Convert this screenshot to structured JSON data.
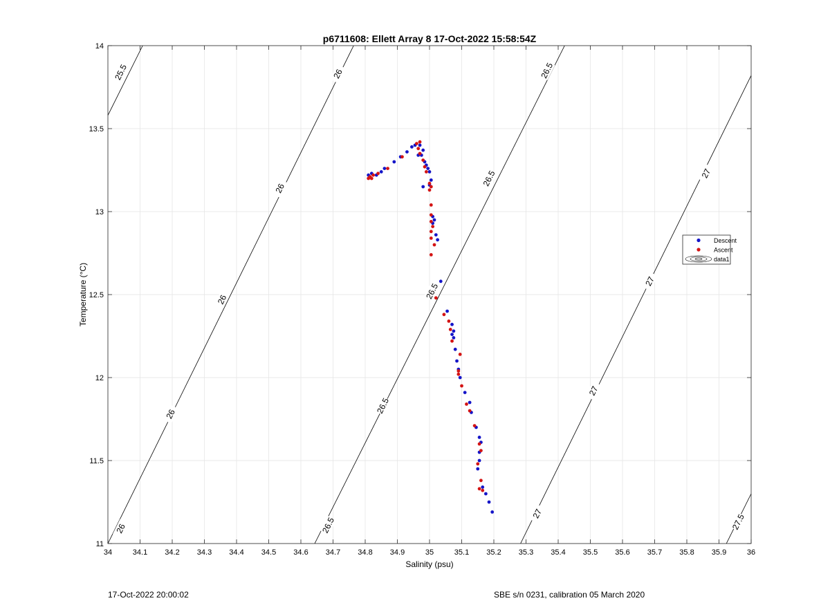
{
  "chart_data": {
    "type": "scatter",
    "title": "p6711608: Ellett Array 8 17-Oct-2022 15:58:54Z",
    "xlabel": "Salinity (psu)",
    "ylabel": "Temperature (°C)",
    "xlim": [
      34,
      36
    ],
    "ylim": [
      11,
      14
    ],
    "x_ticks": [
      34,
      34.1,
      34.2,
      34.3,
      34.4,
      34.5,
      34.6,
      34.7,
      34.8,
      34.9,
      35,
      35.1,
      35.2,
      35.3,
      35.4,
      35.5,
      35.6,
      35.7,
      35.8,
      35.9,
      36
    ],
    "x_tick_labels": [
      "34",
      "34.1",
      "34.2",
      "34.3",
      "34.4",
      "34.5",
      "34.6",
      "34.7",
      "34.8",
      "34.9",
      "35",
      "35.1",
      "35.2",
      "35.3",
      "35.4",
      "35.5",
      "35.6",
      "35.7",
      "35.8",
      "35.9",
      "36"
    ],
    "y_ticks": [
      11,
      11.5,
      12,
      12.5,
      13,
      13.5,
      14
    ],
    "y_tick_labels": [
      "11",
      "11.5",
      "12",
      "12.5",
      "13",
      "13.5",
      "14"
    ],
    "grid": true,
    "legend_position": "right",
    "legend": [
      "Descent",
      "Ascent",
      "data1"
    ],
    "colors": {
      "descent": "#1515c8",
      "ascent": "#d41414",
      "contour": "#000000",
      "grid": "#e3e3e3"
    },
    "contours": [
      {
        "level": "25.5",
        "points": [
          [
            34,
            13.58
          ],
          [
            34.108,
            14
          ]
        ],
        "labels": [
          {
            "s": 34.04,
            "t": 13.84
          }
        ]
      },
      {
        "level": "26",
        "points": [
          [
            34,
            11.0
          ],
          [
            34.764,
            14
          ]
        ],
        "labels": [
          {
            "s": 34.04,
            "t": 11.09
          },
          {
            "s": 34.195,
            "t": 11.78
          },
          {
            "s": 34.355,
            "t": 12.47
          },
          {
            "s": 34.535,
            "t": 13.14
          },
          {
            "s": 34.715,
            "t": 13.83
          }
        ]
      },
      {
        "level": "26.5",
        "points": [
          [
            34.643,
            11.0
          ],
          [
            35.42,
            14
          ]
        ],
        "labels": [
          {
            "s": 34.685,
            "t": 11.11
          },
          {
            "s": 34.855,
            "t": 11.83
          },
          {
            "s": 35.008,
            "t": 12.52
          },
          {
            "s": 35.185,
            "t": 13.2
          },
          {
            "s": 35.365,
            "t": 13.85
          }
        ]
      },
      {
        "level": "27",
        "points": [
          [
            35.283,
            11.0
          ],
          [
            36,
            13.82
          ]
        ],
        "labels": [
          {
            "s": 35.335,
            "t": 11.18
          },
          {
            "s": 35.51,
            "t": 11.92
          },
          {
            "s": 35.685,
            "t": 12.58
          },
          {
            "s": 35.86,
            "t": 13.23
          }
        ]
      },
      {
        "level": "27.5",
        "points": [
          [
            35.923,
            11.0
          ],
          [
            36,
            11.3
          ]
        ],
        "labels": [
          {
            "s": 35.96,
            "t": 11.13
          }
        ]
      }
    ],
    "series": [
      {
        "name": "Descent",
        "color": "#1515c8",
        "points": [
          [
            34.81,
            13.22
          ],
          [
            34.82,
            13.23
          ],
          [
            34.835,
            13.22
          ],
          [
            34.85,
            13.24
          ],
          [
            34.86,
            13.26
          ],
          [
            34.89,
            13.3
          ],
          [
            34.91,
            13.33
          ],
          [
            34.93,
            13.36
          ],
          [
            34.945,
            13.39
          ],
          [
            34.955,
            13.4
          ],
          [
            34.97,
            13.4
          ],
          [
            34.98,
            13.37
          ],
          [
            34.965,
            13.34
          ],
          [
            34.975,
            13.34
          ],
          [
            34.985,
            13.3
          ],
          [
            34.99,
            13.28
          ],
          [
            34.995,
            13.26
          ],
          [
            35.0,
            13.24
          ],
          [
            35.005,
            13.19
          ],
          [
            35.0,
            13.16
          ],
          [
            34.98,
            13.15
          ],
          [
            35.01,
            12.97
          ],
          [
            35.015,
            12.95
          ],
          [
            35.01,
            12.93
          ],
          [
            35.02,
            12.86
          ],
          [
            35.025,
            12.83
          ],
          [
            35.035,
            12.58
          ],
          [
            35.055,
            12.4
          ],
          [
            35.07,
            12.32
          ],
          [
            35.075,
            12.28
          ],
          [
            35.07,
            12.26
          ],
          [
            35.075,
            12.24
          ],
          [
            35.08,
            12.17
          ],
          [
            35.085,
            12.1
          ],
          [
            35.09,
            12.05
          ],
          [
            35.095,
            12.0
          ],
          [
            35.11,
            11.91
          ],
          [
            35.125,
            11.85
          ],
          [
            35.13,
            11.79
          ],
          [
            35.145,
            11.7
          ],
          [
            35.155,
            11.64
          ],
          [
            35.16,
            11.61
          ],
          [
            35.155,
            11.55
          ],
          [
            35.155,
            11.5
          ],
          [
            35.15,
            11.45
          ],
          [
            35.165,
            11.34
          ],
          [
            35.175,
            11.3
          ],
          [
            35.185,
            11.25
          ],
          [
            35.195,
            11.19
          ]
        ]
      },
      {
        "name": "Ascent",
        "color": "#d41414",
        "points": [
          [
            34.81,
            13.2
          ],
          [
            34.815,
            13.21
          ],
          [
            34.82,
            13.2
          ],
          [
            34.825,
            13.22
          ],
          [
            34.84,
            13.23
          ],
          [
            34.87,
            13.26
          ],
          [
            34.915,
            13.33
          ],
          [
            34.96,
            13.41
          ],
          [
            34.97,
            13.42
          ],
          [
            34.965,
            13.38
          ],
          [
            34.97,
            13.35
          ],
          [
            34.98,
            13.31
          ],
          [
            34.985,
            13.27
          ],
          [
            34.99,
            13.24
          ],
          [
            35.0,
            13.17
          ],
          [
            35.005,
            13.15
          ],
          [
            35.0,
            13.13
          ],
          [
            35.005,
            13.04
          ],
          [
            35.005,
            12.98
          ],
          [
            35.005,
            12.94
          ],
          [
            35.01,
            12.91
          ],
          [
            35.005,
            12.88
          ],
          [
            35.005,
            12.84
          ],
          [
            35.015,
            12.8
          ],
          [
            35.005,
            12.74
          ],
          [
            35.02,
            12.48
          ],
          [
            35.045,
            12.38
          ],
          [
            35.06,
            12.34
          ],
          [
            35.065,
            12.29
          ],
          [
            35.07,
            12.22
          ],
          [
            35.095,
            12.14
          ],
          [
            35.09,
            12.04
          ],
          [
            35.09,
            12.02
          ],
          [
            35.1,
            11.95
          ],
          [
            35.115,
            11.84
          ],
          [
            35.125,
            11.8
          ],
          [
            35.14,
            11.71
          ],
          [
            35.155,
            11.6
          ],
          [
            35.16,
            11.56
          ],
          [
            35.15,
            11.48
          ],
          [
            35.16,
            11.38
          ],
          [
            35.155,
            11.33
          ],
          [
            35.165,
            11.32
          ]
        ]
      }
    ]
  },
  "footer": {
    "left": "17-Oct-2022 20:00:02",
    "right": "SBE s/n 0231, calibration 05 March 2020"
  }
}
